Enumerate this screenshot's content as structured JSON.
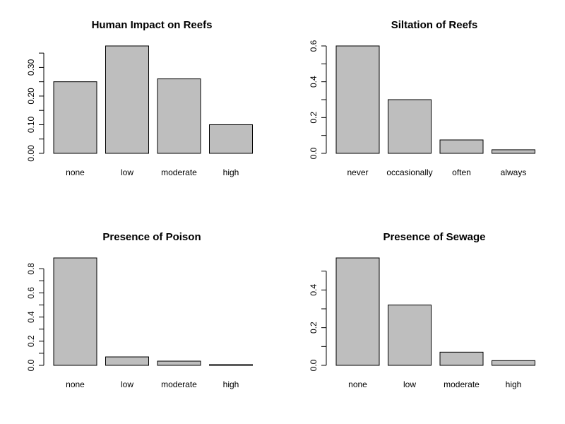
{
  "chart_data": [
    {
      "type": "bar",
      "title": "Human Impact on Reefs",
      "categories": [
        "none",
        "low",
        "moderate",
        "high"
      ],
      "values": [
        0.25,
        0.375,
        0.26,
        0.1
      ],
      "ylim": [
        0,
        0.375
      ],
      "yticks": [
        0.0,
        0.1,
        0.2,
        0.3
      ],
      "ytick_labels": [
        "0.00",
        "0.10",
        "0.20",
        "0.30"
      ],
      "minor_ticks": [
        0.05,
        0.15,
        0.25,
        0.35
      ],
      "xlabel": "",
      "ylabel": "",
      "grid": false
    },
    {
      "type": "bar",
      "title": "Siltation of Reefs",
      "categories": [
        "never",
        "occasionally",
        "often",
        "always"
      ],
      "values": [
        0.6,
        0.3,
        0.075,
        0.02
      ],
      "ylim": [
        0,
        0.6
      ],
      "yticks": [
        0.0,
        0.2,
        0.4,
        0.6
      ],
      "ytick_labels": [
        "0.0",
        "0.2",
        "0.4",
        "0.6"
      ],
      "minor_ticks": [
        0.1,
        0.3,
        0.5
      ],
      "xlabel": "",
      "ylabel": "",
      "grid": false
    },
    {
      "type": "bar",
      "title": "Presence of Poison",
      "categories": [
        "none",
        "low",
        "moderate",
        "high"
      ],
      "values": [
        0.89,
        0.07,
        0.035,
        0.005
      ],
      "ylim": [
        0,
        0.89
      ],
      "yticks": [
        0.0,
        0.2,
        0.4,
        0.6,
        0.8
      ],
      "ytick_labels": [
        "0.0",
        "0.2",
        "0.4",
        "0.6",
        "0.8"
      ],
      "minor_ticks": [
        0.1,
        0.3,
        0.5,
        0.7
      ],
      "xlabel": "",
      "ylabel": "",
      "grid": false
    },
    {
      "type": "bar",
      "title": "Presence of Sewage",
      "categories": [
        "none",
        "low",
        "moderate",
        "high"
      ],
      "values": [
        0.57,
        0.32,
        0.07,
        0.025
      ],
      "ylim": [
        0,
        0.57
      ],
      "yticks": [
        0.0,
        0.2,
        0.4
      ],
      "ytick_labels": [
        "0.0",
        "0.2",
        "0.4"
      ],
      "minor_ticks": [
        0.1,
        0.3,
        0.5
      ],
      "xlabel": "",
      "ylabel": "",
      "grid": false
    }
  ],
  "colors": {
    "bar_fill": "#bebebe",
    "bar_stroke": "#000000",
    "background": "#ffffff"
  }
}
